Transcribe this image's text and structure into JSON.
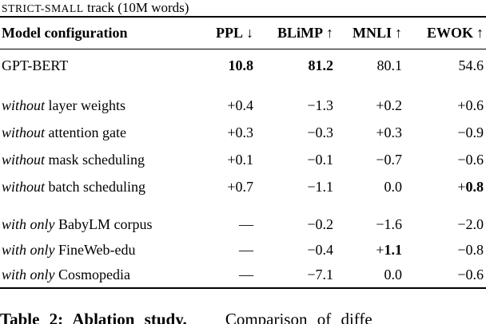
{
  "track_label": {
    "name": "STRICT-SMALL",
    "rest": " track (10M words)"
  },
  "table": {
    "header": [
      {
        "label": "Model configuration",
        "arrow": ""
      },
      {
        "label": "PPL",
        "arrow": "↓"
      },
      {
        "label": "BLiMP",
        "arrow": "↑"
      },
      {
        "label": "MNLI",
        "arrow": "↑"
      },
      {
        "label": "EWOK",
        "arrow": "↑"
      }
    ],
    "groups": [
      {
        "rows": [
          {
            "label": {
              "italic": "",
              "text": "GPT-BERT"
            },
            "cells": [
              {
                "bold": "10.8"
              },
              {
                "bold": "81.2"
              },
              {
                "plain": "80.1"
              },
              {
                "plain": "54.6"
              }
            ]
          }
        ]
      },
      {
        "rows": [
          {
            "label": {
              "italic": "without",
              "text": " layer weights"
            },
            "cells": [
              {
                "plain": "+0.4"
              },
              {
                "plain": "−1.3"
              },
              {
                "plain": "+0.2"
              },
              {
                "plain": "+0.6"
              }
            ]
          },
          {
            "label": {
              "italic": "without",
              "text": " attention gate"
            },
            "cells": [
              {
                "plain": "+0.3"
              },
              {
                "plain": "−0.3"
              },
              {
                "plain": "+0.3"
              },
              {
                "plain": "−0.9"
              }
            ]
          },
          {
            "label": {
              "italic": "without",
              "text": " mask scheduling"
            },
            "cells": [
              {
                "plain": "+0.1"
              },
              {
                "plain": "−0.1"
              },
              {
                "plain": "−0.7"
              },
              {
                "plain": "−0.6"
              }
            ]
          },
          {
            "label": {
              "italic": "without",
              "text": " batch scheduling"
            },
            "cells": [
              {
                "plain": "+0.7"
              },
              {
                "plain": "−1.1"
              },
              {
                "plain": "0.0"
              },
              {
                "plain": "+",
                "bold": "0.8"
              }
            ]
          }
        ]
      },
      {
        "rows": [
          {
            "label": {
              "italic": "with only",
              "text": " BabyLM corpus"
            },
            "cells": [
              {
                "plain": "—"
              },
              {
                "plain": "−0.2"
              },
              {
                "plain": "−1.6"
              },
              {
                "plain": "−2.0"
              }
            ]
          },
          {
            "label": {
              "italic": "with only",
              "text": " FineWeb-edu"
            },
            "cells": [
              {
                "plain": "—"
              },
              {
                "plain": "−0.4"
              },
              {
                "plain": "+",
                "bold": "1.1"
              },
              {
                "plain": "−0.8"
              }
            ]
          },
          {
            "label": {
              "italic": "with only",
              "text": " Cosmopedia"
            },
            "cells": [
              {
                "plain": "—"
              },
              {
                "plain": "−7.1"
              },
              {
                "plain": "0.0"
              },
              {
                "plain": "−0.6"
              }
            ]
          }
        ]
      }
    ]
  },
  "caption": {
    "bold": "Table 2: Ablation study.",
    "rest": "Comparison of diffe"
  }
}
